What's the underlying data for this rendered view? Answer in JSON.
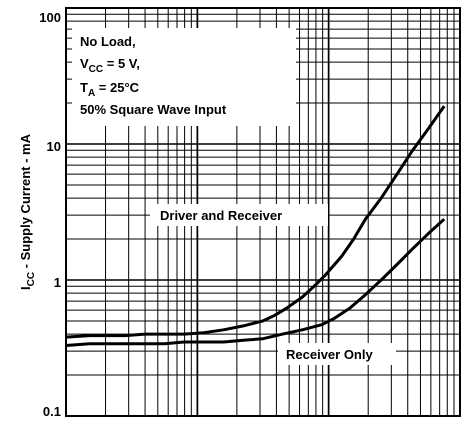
{
  "chart_data": {
    "type": "line",
    "y_scale": "log",
    "ylim": [
      0.1,
      100
    ],
    "grid": true,
    "ylabel_prefix": "I",
    "ylabel_sub": "CC",
    "ylabel_suffix": " - Supply Current - mA",
    "y_ticks": [
      "100",
      "10",
      "1",
      "0.1"
    ],
    "conditions": [
      {
        "main": "No Load,",
        "sub": "",
        "after": ""
      },
      {
        "main": "V",
        "sub": "CC",
        "after": " = 5 V,"
      },
      {
        "main": "T",
        "sub": "A",
        "after": " = 25°C"
      },
      {
        "main": "50% Square Wave Input",
        "sub": "",
        "after": ""
      }
    ],
    "series": [
      {
        "name": "Driver and Receiver",
        "points": [
          [
            0.0,
            0.38
          ],
          [
            0.06,
            0.39
          ],
          [
            0.1,
            0.39
          ],
          [
            0.15,
            0.39
          ],
          [
            0.2,
            0.4
          ],
          [
            0.25,
            0.4
          ],
          [
            0.3,
            0.4
          ],
          [
            0.35,
            0.41
          ],
          [
            0.4,
            0.43
          ],
          [
            0.45,
            0.46
          ],
          [
            0.5,
            0.5
          ],
          [
            0.53,
            0.55
          ],
          [
            0.56,
            0.62
          ],
          [
            0.6,
            0.75
          ],
          [
            0.63,
            0.9
          ],
          [
            0.66,
            1.1
          ],
          [
            0.7,
            1.5
          ],
          [
            0.73,
            2.0
          ],
          [
            0.76,
            2.8
          ],
          [
            0.8,
            4.0
          ],
          [
            0.84,
            6.0
          ],
          [
            0.88,
            9.0
          ],
          [
            0.92,
            13.0
          ],
          [
            0.96,
            19.0
          ]
        ]
      },
      {
        "name": "Receiver Only",
        "points": [
          [
            0.0,
            0.33
          ],
          [
            0.06,
            0.34
          ],
          [
            0.1,
            0.34
          ],
          [
            0.15,
            0.34
          ],
          [
            0.2,
            0.34
          ],
          [
            0.25,
            0.34
          ],
          [
            0.3,
            0.35
          ],
          [
            0.35,
            0.35
          ],
          [
            0.4,
            0.35
          ],
          [
            0.45,
            0.36
          ],
          [
            0.5,
            0.37
          ],
          [
            0.55,
            0.4
          ],
          [
            0.6,
            0.43
          ],
          [
            0.65,
            0.47
          ],
          [
            0.68,
            0.52
          ],
          [
            0.72,
            0.62
          ],
          [
            0.76,
            0.78
          ],
          [
            0.8,
            1.0
          ],
          [
            0.84,
            1.3
          ],
          [
            0.88,
            1.7
          ],
          [
            0.92,
            2.2
          ],
          [
            0.96,
            2.8
          ]
        ]
      }
    ]
  }
}
